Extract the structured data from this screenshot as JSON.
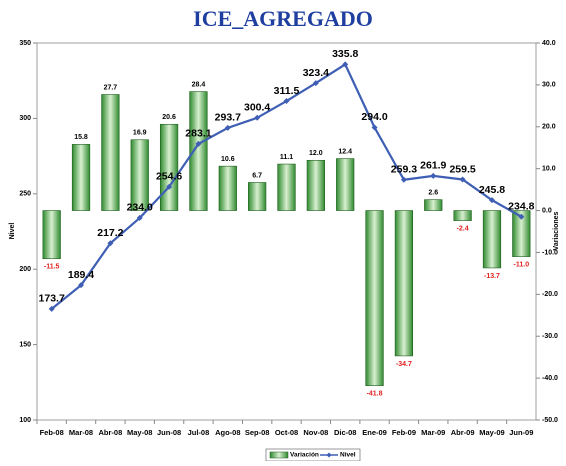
{
  "chart_data": {
    "type": "bar-line",
    "title": "ICE_AGREGADO",
    "y_label": "Nivel",
    "y2_label": "Variaciones",
    "categories": [
      "Feb-08",
      "Mar-08",
      "Abr-08",
      "May-08",
      "Jun-08",
      "Jul-08",
      "Ago-08",
      "Sep-08",
      "Oct-08",
      "Nov-08",
      "Dic-08",
      "Ene-09",
      "Feb-09",
      "Mar-09",
      "Abr-09",
      "May-09",
      "Jun-09"
    ],
    "ylim": [
      100,
      350
    ],
    "yticks": [
      100,
      150,
      200,
      250,
      300,
      350
    ],
    "y2lim": [
      -50,
      40
    ],
    "y2ticks": [
      {
        "value": -50,
        "label": "-50.0"
      },
      {
        "value": -40,
        "label": "-40.0"
      },
      {
        "value": -30,
        "label": "-30.0"
      },
      {
        "value": -20,
        "label": "-20.0"
      },
      {
        "value": -10,
        "label": "-10.0"
      },
      {
        "value": 0,
        "label": "0.0"
      },
      {
        "value": 10,
        "label": "10.0"
      },
      {
        "value": 20,
        "label": "20.0"
      },
      {
        "value": 30,
        "label": "30.0"
      },
      {
        "value": 40,
        "label": "40.0"
      }
    ],
    "legend": "bottom",
    "series": [
      {
        "name": "Variación",
        "type": "bar",
        "axis": "y2",
        "color": "#2f8a2f",
        "negative_label_color": "#e02020",
        "values": [
          -11.5,
          15.8,
          27.7,
          16.9,
          20.6,
          28.4,
          10.6,
          6.7,
          11.1,
          12.0,
          12.4,
          -41.8,
          -34.7,
          2.6,
          -2.4,
          -13.7,
          -11.0
        ],
        "value_labels": [
          "-11.5",
          "15.8",
          "27.7",
          "16.9",
          "20.6",
          "28.4",
          "10.6",
          "6.7",
          "11.1",
          "12.0",
          "12.4",
          "-41.8",
          "-34.7",
          "2.6",
          "-2.4",
          "-13.7",
          "-11.0"
        ]
      },
      {
        "name": "Nivel",
        "type": "line",
        "axis": "y",
        "color": "#3f5fb5",
        "values": [
          173.7,
          189.4,
          217.2,
          234.0,
          254.6,
          283.1,
          293.7,
          300.4,
          311.5,
          323.4,
          335.8,
          294.0,
          259.3,
          261.9,
          259.5,
          245.8,
          234.8
        ],
        "value_labels": [
          "173.7",
          "189.4",
          "217.2",
          "234.0",
          "254.6",
          "283.1",
          "293.7",
          "300.4",
          "311.5",
          "323.4",
          "335.8",
          "294.0",
          "259.3",
          "261.9",
          "259.5",
          "245.8",
          "234.8"
        ]
      }
    ]
  }
}
